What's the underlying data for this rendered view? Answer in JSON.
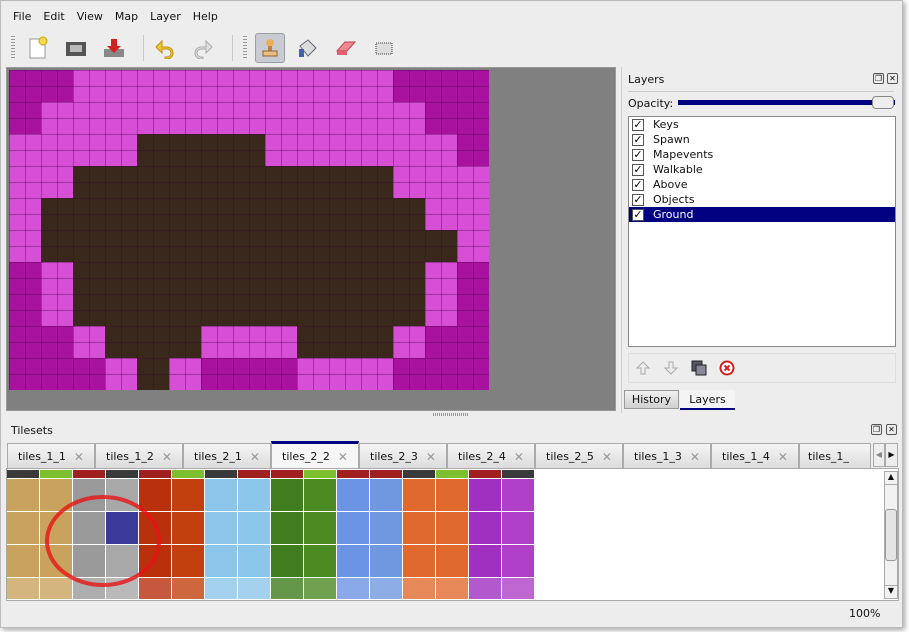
{
  "menu": [
    "File",
    "Edit",
    "View",
    "Map",
    "Layer",
    "Help"
  ],
  "toolbar": {
    "icons": [
      "new-file-icon",
      "open-folder-icon",
      "save-icon",
      "undo-icon",
      "redo-icon",
      "stamp-brush-icon",
      "bucket-fill-icon",
      "eraser-icon",
      "rectangle-select-icon"
    ],
    "active": "stamp-brush-icon"
  },
  "map": {
    "tiles": [
      "DDLLLLLLLLLLDDD",
      "DLLLLLLLLLLLLDD",
      "LLLLBBBBLLLLLLD",
      "LLBBBBBBBBBBLLL",
      "LBBBBBBBBBBBBLL",
      "LBBBBBBBBBBBBBL",
      "DLBBBBBBBBBBBLD",
      "DLBBBBBBBBBBBLD",
      "DDLBBBLLLBBBLDD",
      "DDDLBLDDDLLLDDD"
    ],
    "colors": {
      "D": "#a8129e",
      "L": "#d64fd6",
      "B": "#3a281c"
    }
  },
  "layers_panel": {
    "title": "Layers",
    "opacity_label": "Opacity:",
    "opacity": 100,
    "layers": [
      {
        "name": "Keys",
        "visible": true
      },
      {
        "name": "Spawn",
        "visible": true
      },
      {
        "name": "Mapevents",
        "visible": true
      },
      {
        "name": "Walkable",
        "visible": true
      },
      {
        "name": "Above",
        "visible": true
      },
      {
        "name": "Objects",
        "visible": true
      },
      {
        "name": "Ground",
        "visible": true,
        "selected": true
      }
    ],
    "buttons": [
      "raise-layer-icon",
      "lower-layer-icon",
      "duplicate-layer-icon",
      "remove-layer-icon"
    ],
    "tabs": [
      "History",
      "Layers"
    ],
    "active_tab": "Layers"
  },
  "tilesets_panel": {
    "title": "Tilesets",
    "tabs": [
      "tiles_1_1",
      "tiles_1_2",
      "tiles_2_1",
      "tiles_2_2",
      "tiles_2_3",
      "tiles_2_4",
      "tiles_2_5",
      "tiles_1_3",
      "tiles_1_4",
      "tiles_1_"
    ],
    "active_tab": "tiles_2_2",
    "column_colors": [
      "#c9a35e",
      "#c9a35e",
      "#9a9a9a",
      "#a8a8a8",
      "#b8300c",
      "#c2400e",
      "#8cc6ea",
      "#8cc6ea",
      "#3f7d1e",
      "#4c8a22",
      "#6c94e4",
      "#7098e0",
      "#e06a2e",
      "#e06a2e",
      "#a030c0",
      "#b040c8"
    ],
    "selected_tile": {
      "column": 4,
      "row": 2
    }
  },
  "status": {
    "zoom": "100%"
  }
}
